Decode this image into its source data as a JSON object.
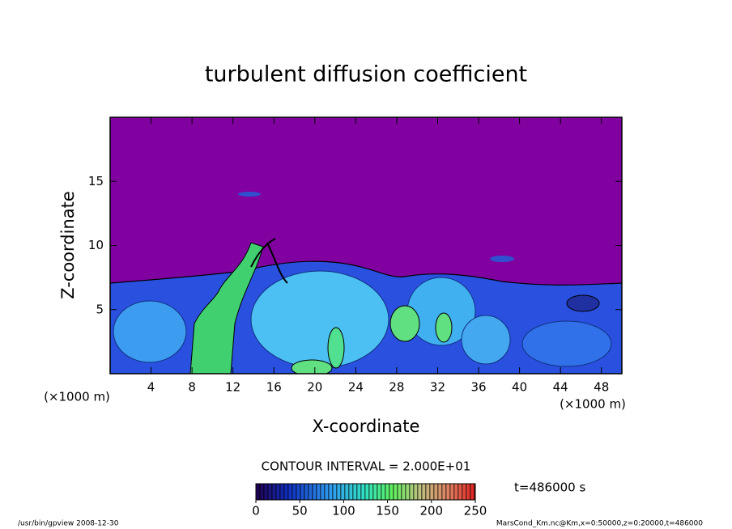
{
  "chart_data": {
    "type": "contour",
    "title": "turbulent diffusion coefficient",
    "xlabel": "X-coordinate",
    "ylabel": "Z-coordinate",
    "xunit": "(×1000 m)",
    "yunit": "(×1000 m)",
    "xlim": [
      0,
      50
    ],
    "xticks": [
      4,
      8,
      12,
      16,
      20,
      24,
      28,
      32,
      36,
      40,
      44,
      48
    ],
    "ylim": [
      0,
      20
    ],
    "yticks": [
      5,
      10,
      15
    ],
    "contour_interval": "CONTOUR INTERVAL = 2.000E+01",
    "time": "t=486000 s",
    "colorbar": {
      "lim": [
        0,
        250
      ],
      "ticks": [
        0,
        50,
        100,
        150,
        200,
        250
      ]
    },
    "footer_left": "/usr/bin/gpview  2008-12-30",
    "footer_right": "MarsCond_Km.nc@Km,x=0:50000,z=0:20000,t=486000"
  }
}
